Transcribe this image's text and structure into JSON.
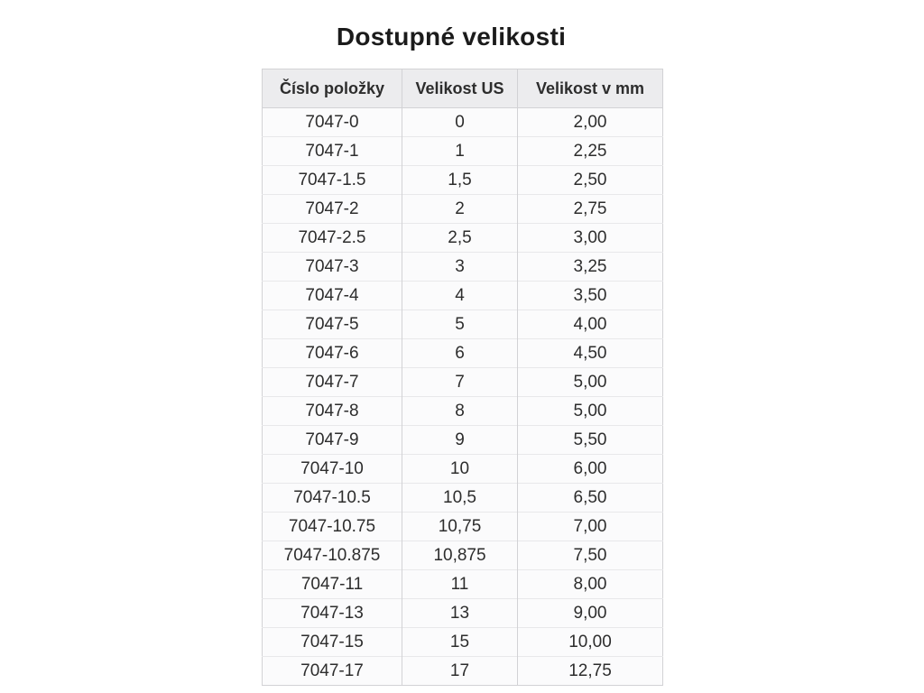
{
  "title": "Dostupné velikosti",
  "colors": {
    "header_bg": "#ececee",
    "row_bg": "#fbfbfc",
    "border_outer": "#d2d2d5",
    "border_row": "#e8e8ea",
    "text": "#2d2d2d",
    "title_text": "#1b1b1b",
    "page_bg": "#ffffff"
  },
  "chart_data": {
    "type": "table",
    "title": "Dostupné velikosti",
    "columns": [
      "Číslo položky",
      "Velikost US",
      "Velikost v mm"
    ],
    "rows": [
      [
        "7047-0",
        "0",
        "2,00"
      ],
      [
        "7047-1",
        "1",
        "2,25"
      ],
      [
        "7047-1.5",
        "1,5",
        "2,50"
      ],
      [
        "7047-2",
        "2",
        "2,75"
      ],
      [
        "7047-2.5",
        "2,5",
        "3,00"
      ],
      [
        "7047-3",
        "3",
        "3,25"
      ],
      [
        "7047-4",
        "4",
        "3,50"
      ],
      [
        "7047-5",
        "5",
        "4,00"
      ],
      [
        "7047-6",
        "6",
        "4,50"
      ],
      [
        "7047-7",
        "7",
        "5,00"
      ],
      [
        "7047-8",
        "8",
        "5,00"
      ],
      [
        "7047-9",
        "9",
        "5,50"
      ],
      [
        "7047-10",
        "10",
        "6,00"
      ],
      [
        "7047-10.5",
        "10,5",
        "6,50"
      ],
      [
        "7047-10.75",
        "10,75",
        "7,00"
      ],
      [
        "7047-10.875",
        "10,875",
        "7,50"
      ],
      [
        "7047-11",
        "11",
        "8,00"
      ],
      [
        "7047-13",
        "13",
        "9,00"
      ],
      [
        "7047-15",
        "15",
        "10,00"
      ],
      [
        "7047-17",
        "17",
        "12,75"
      ]
    ]
  }
}
